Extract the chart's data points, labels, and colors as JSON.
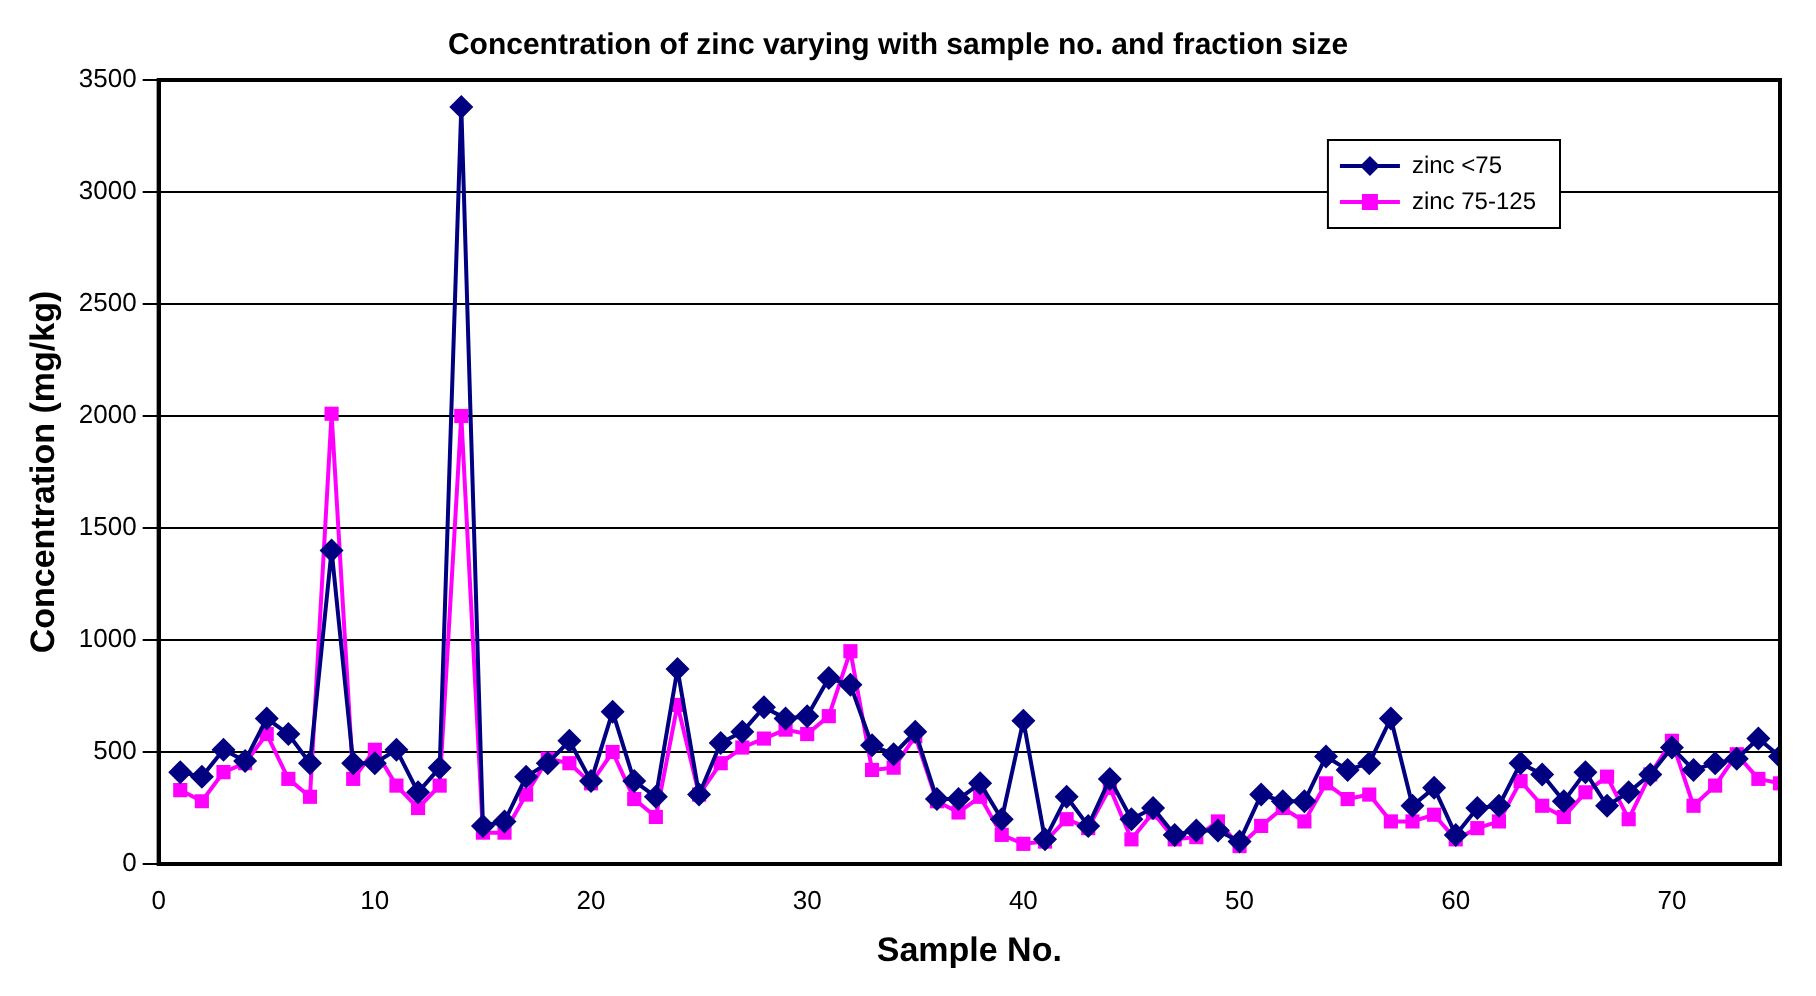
{
  "chart_data": {
    "type": "line",
    "title": "Concentration of zinc varying with sample no. and fraction size",
    "xlabel": "Sample No.",
    "ylabel": "Concentration (mg/kg)",
    "x": [
      1,
      2,
      3,
      4,
      5,
      6,
      7,
      8,
      9,
      10,
      11,
      12,
      13,
      14,
      15,
      16,
      17,
      18,
      19,
      20,
      21,
      22,
      23,
      24,
      25,
      26,
      27,
      28,
      29,
      30,
      31,
      32,
      33,
      34,
      35,
      36,
      37,
      38,
      39,
      40,
      41,
      42,
      43,
      44,
      45,
      46,
      47,
      48,
      49,
      50,
      51,
      52,
      53,
      54,
      55,
      56,
      57,
      58,
      59,
      60,
      61,
      62,
      63,
      64,
      65,
      66,
      67,
      68,
      69,
      70,
      71,
      72,
      73,
      74,
      75
    ],
    "series": [
      {
        "name": "zinc <75",
        "color": "#000080",
        "marker": "diamond",
        "values": [
          410,
          390,
          510,
          460,
          650,
          580,
          450,
          1400,
          450,
          450,
          510,
          320,
          430,
          3380,
          170,
          190,
          390,
          450,
          550,
          370,
          680,
          370,
          300,
          870,
          310,
          540,
          590,
          700,
          650,
          660,
          830,
          800,
          530,
          490,
          590,
          290,
          290,
          360,
          200,
          640,
          110,
          300,
          170,
          380,
          200,
          250,
          130,
          150,
          150,
          100,
          310,
          280,
          280,
          480,
          420,
          450,
          650,
          260,
          340,
          130,
          250,
          260,
          450,
          400,
          280,
          410,
          260,
          320,
          400,
          520,
          420,
          450,
          470,
          560,
          480
        ]
      },
      {
        "name": "zinc 75-125",
        "color": "#ff00ff",
        "marker": "square",
        "values": [
          330,
          280,
          410,
          450,
          580,
          380,
          300,
          2010,
          380,
          510,
          350,
          250,
          350,
          2000,
          140,
          140,
          310,
          470,
          450,
          360,
          500,
          290,
          210,
          710,
          310,
          450,
          520,
          560,
          600,
          580,
          660,
          950,
          420,
          430,
          570,
          280,
          230,
          300,
          130,
          90,
          100,
          200,
          160,
          340,
          110,
          230,
          110,
          120,
          190,
          80,
          170,
          250,
          190,
          360,
          290,
          310,
          190,
          190,
          220,
          110,
          160,
          190,
          370,
          260,
          210,
          320,
          390,
          200,
          400,
          550,
          260,
          350,
          490,
          380,
          360
        ]
      }
    ],
    "xlim": [
      0,
      75
    ],
    "xticks": [
      0,
      10,
      20,
      30,
      40,
      50,
      60,
      70
    ],
    "ylim": [
      0,
      3500
    ],
    "yticks": [
      0,
      500,
      1000,
      1500,
      2000,
      2500,
      3000,
      3500
    ],
    "grid": "y",
    "legend": "top right",
    "line_style": "solid"
  }
}
